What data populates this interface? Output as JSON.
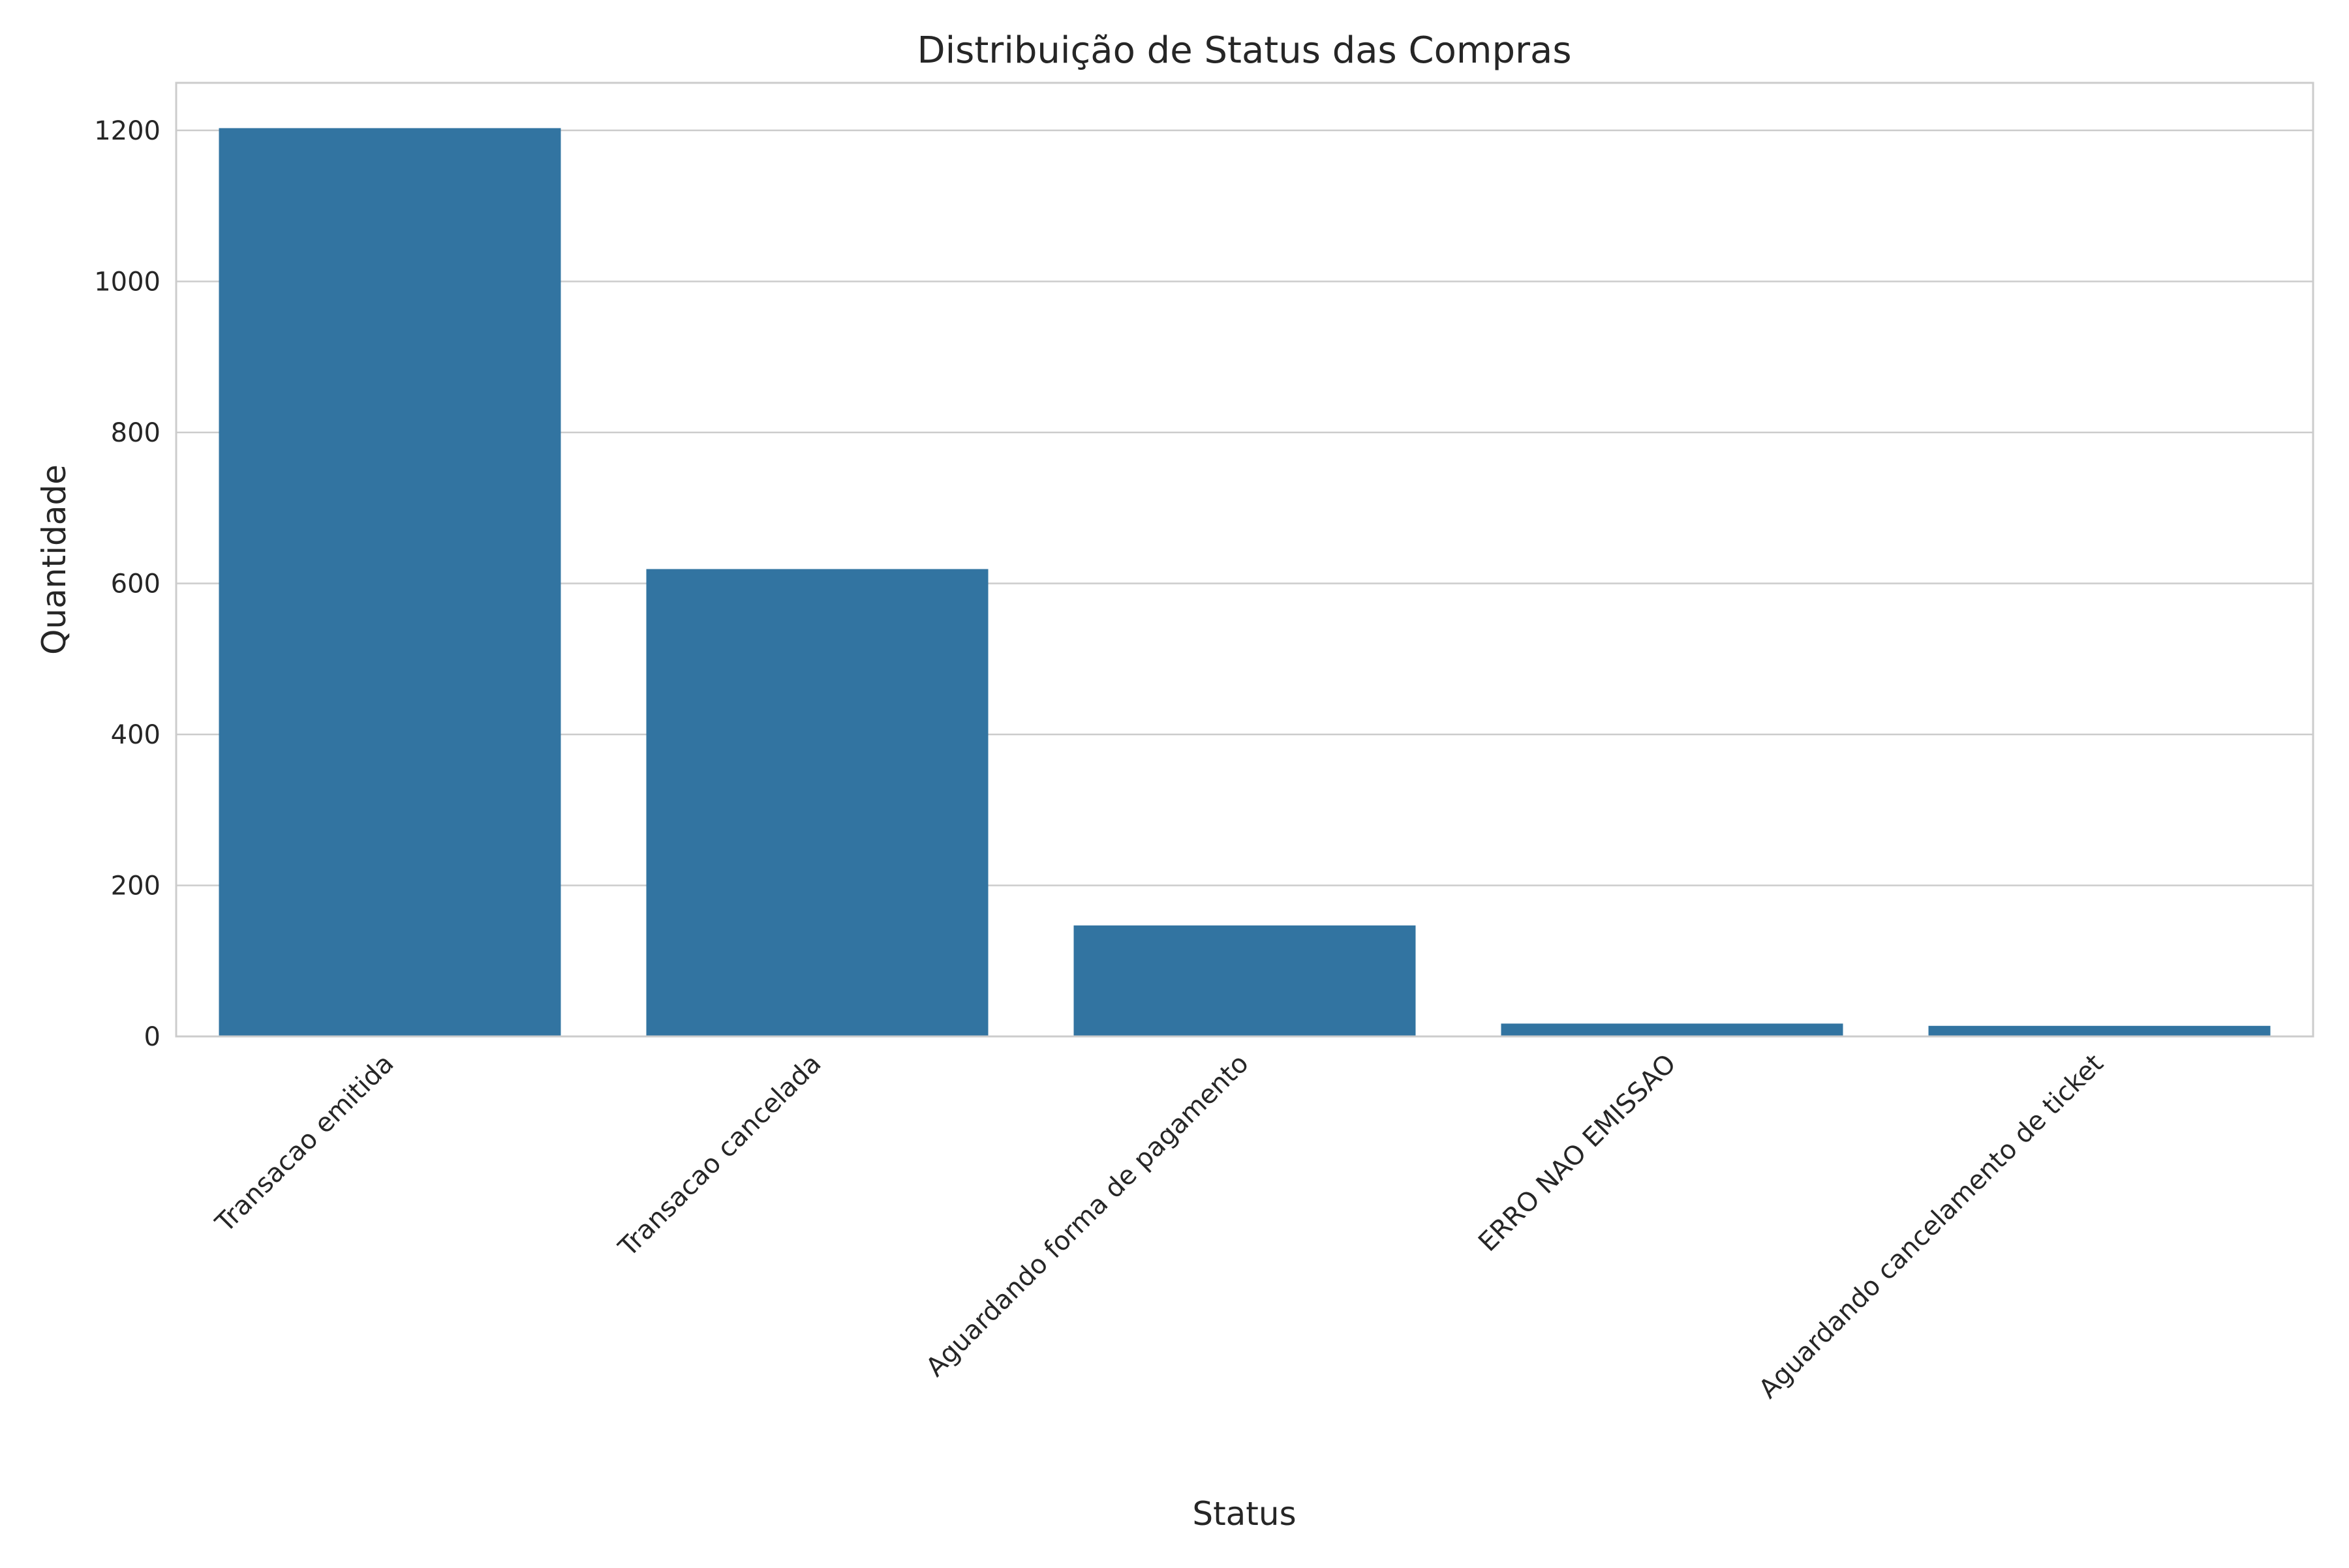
{
  "chart_data": {
    "type": "bar",
    "title": "Distribuição de Status das Compras",
    "xlabel": "Status",
    "ylabel": "Quantidade",
    "categories": [
      "Transacao emitida",
      "Transacao cancelada",
      "Aguardando forma de pagamento",
      "ERRO NAO EMISSAO",
      "Aguardando cancelamento de ticket"
    ],
    "values": [
      1203,
      619,
      147,
      17,
      14
    ],
    "ylim": [
      0,
      1263
    ],
    "yticks": [
      0,
      200,
      400,
      600,
      800,
      1000,
      1200
    ],
    "grid": true,
    "legend": "none",
    "bar_color": "#3274a1",
    "grid_color": "#cccccc",
    "spine_color": "#cccccc",
    "text_color": "#262626"
  }
}
